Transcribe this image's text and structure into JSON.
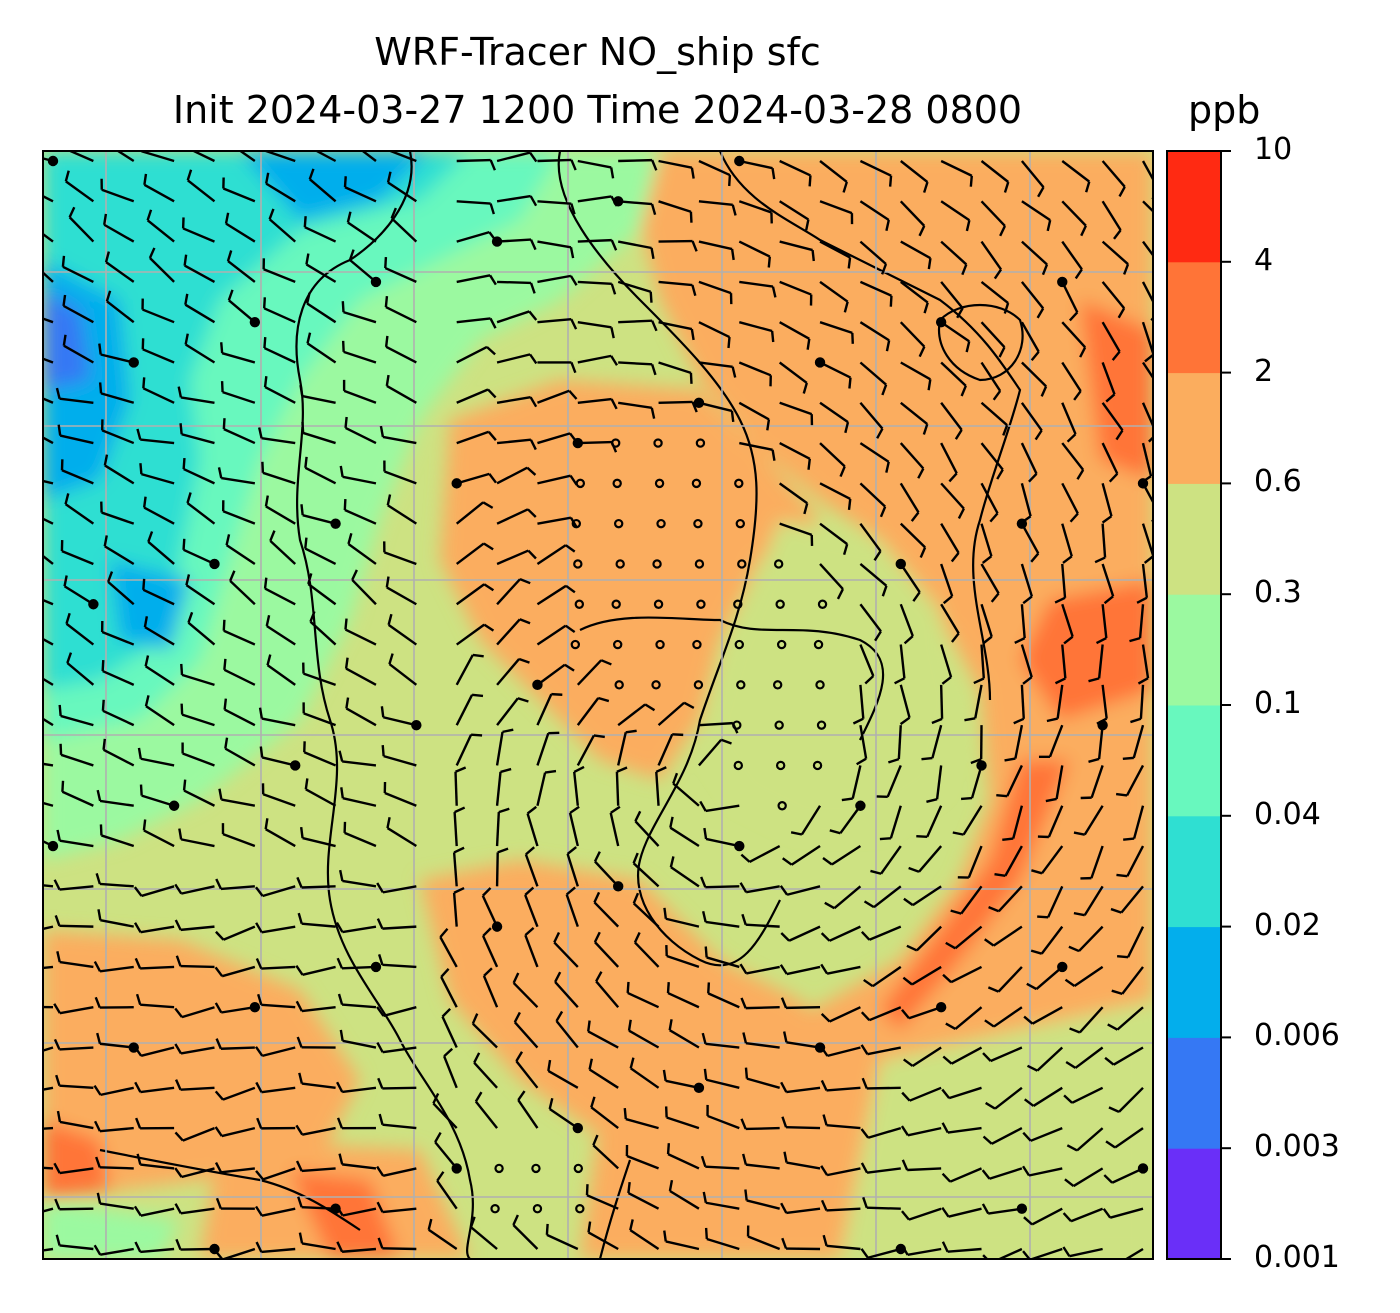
{
  "title": {
    "line1": "WRF-Tracer NO_ship sfc",
    "line2": "Init 2024-03-27 1200 Time 2024-03-28 0800"
  },
  "colorbar": {
    "unit": "ppb",
    "levels": [
      "0.001",
      "0.003",
      "0.006",
      "0.02",
      "0.04",
      "0.1",
      "0.3",
      "0.6",
      "2",
      "4",
      "10"
    ],
    "colors": [
      "#6a2ff8",
      "#3578f4",
      "#03aeec",
      "#2fdfd2",
      "#68f8be",
      "#9bf9a0",
      "#cde282",
      "#fbad5e",
      "#ff7437",
      "#ff2a12"
    ]
  },
  "map": {
    "legend_colors_used": {
      "coastline": "#000000",
      "gridline": "#b0b0b0",
      "barb": "#000000"
    },
    "layers": [
      "filled-tracer-concentration",
      "coastlines",
      "lat-lon-grid",
      "wind-barbs"
    ]
  }
}
